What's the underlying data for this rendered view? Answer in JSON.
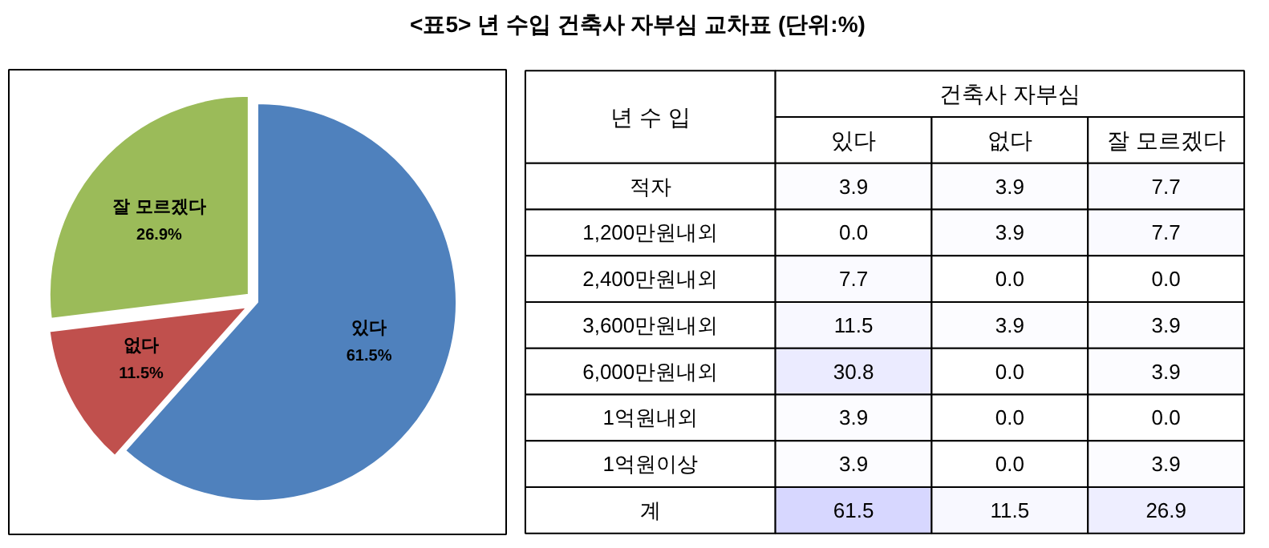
{
  "chart_data": [
    {
      "type": "pie",
      "title": "<표5> 년 수입 건축사 자부심 교차표 (단위:%)",
      "categories": [
        "있다",
        "없다",
        "잘 모르겠다"
      ],
      "values": [
        61.5,
        11.5,
        26.9
      ],
      "colors": [
        "#4f81bd",
        "#c0504d",
        "#9bbb59"
      ],
      "value_labels": [
        "61.5%",
        "11.5%",
        "26.9%"
      ],
      "legend": false
    },
    {
      "type": "heatmap",
      "xlabel": "건축사 자부심",
      "ylabel": "년 수 입",
      "categories": [
        "있다",
        "없다",
        "잘 모르겠다"
      ],
      "y_categories": [
        "적자",
        "1,200만원내외",
        "2,400만원내외",
        "3,600만원내외",
        "6,000만원내외",
        "1억원내외",
        "1억원이상",
        "계"
      ],
      "cells": [
        [
          3.9,
          3.9,
          7.7
        ],
        [
          0.0,
          3.9,
          7.7
        ],
        [
          7.7,
          0.0,
          0.0
        ],
        [
          11.5,
          3.9,
          3.9
        ],
        [
          30.8,
          0.0,
          3.9
        ],
        [
          3.9,
          0.0,
          0.0
        ],
        [
          3.9,
          0.0,
          3.9
        ],
        [
          61.5,
          11.5,
          26.9
        ]
      ],
      "cell_labels": [
        [
          "3.9",
          "3.9",
          "7.7"
        ],
        [
          "0.0",
          "3.9",
          "7.7"
        ],
        [
          "7.7",
          "0.0",
          "0.0"
        ],
        [
          "11.5",
          "3.9",
          "3.9"
        ],
        [
          "30.8",
          "0.0",
          "3.9"
        ],
        [
          "3.9",
          "0.0",
          "0.0"
        ],
        [
          "3.9",
          "0.0",
          "3.9"
        ],
        [
          "61.5",
          "11.5",
          "26.9"
        ]
      ],
      "data_labels": true
    }
  ]
}
